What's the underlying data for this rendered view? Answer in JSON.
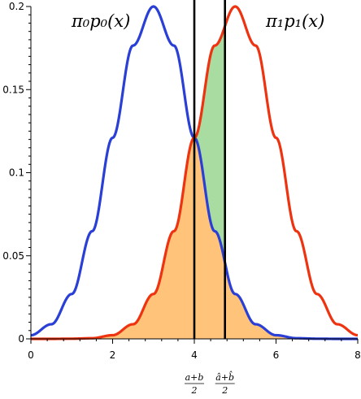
{
  "chart_data": {
    "type": "line",
    "title": "",
    "xlabel": "",
    "ylabel": "",
    "xlim": [
      0,
      8
    ],
    "ylim": [
      0,
      0.2
    ],
    "x_ticks": [
      0,
      2,
      4,
      6,
      8
    ],
    "x_tick_labels": [
      "0",
      "2",
      "4",
      "6",
      "8"
    ],
    "y_ticks": [
      0,
      0.05,
      0.1,
      0.15,
      0.2
    ],
    "y_tick_labels": [
      "0",
      "0.05",
      "0.1",
      "0.15",
      "0.2"
    ],
    "grid": false,
    "series": [
      {
        "name": "π₀p₀(x)",
        "color": "#2a3fd6",
        "x": [
          0,
          0.5,
          1,
          1.5,
          2,
          2.5,
          3,
          3.5,
          4,
          4.5,
          5,
          5.5,
          6,
          6.5,
          7,
          7.5,
          8
        ],
        "y": [
          0.0022,
          0.0088,
          0.027,
          0.0648,
          0.121,
          0.1765,
          0.2,
          0.1765,
          0.121,
          0.0648,
          0.027,
          0.0088,
          0.0022,
          0.0004,
          0.0001,
          0.0,
          0.0
        ]
      },
      {
        "name": "π₁p₁(x)",
        "color": "#ee3311",
        "x": [
          0,
          0.5,
          1,
          1.5,
          2,
          2.5,
          3,
          3.5,
          4,
          4.5,
          5,
          5.5,
          6,
          6.5,
          7,
          7.5,
          8
        ],
        "y": [
          0.0,
          0.0,
          0.0001,
          0.0004,
          0.0022,
          0.0088,
          0.027,
          0.0648,
          0.121,
          0.1765,
          0.2,
          0.1765,
          0.121,
          0.0648,
          0.027,
          0.0088,
          0.0022
        ]
      }
    ],
    "vertical_lines": [
      {
        "x": 4.0,
        "label_num": "a+b",
        "label_den": "2"
      },
      {
        "x": 4.75,
        "label_num": "â+b̂",
        "label_den": "2"
      }
    ],
    "shaded_regions": [
      {
        "description": "error under crossing",
        "color": "#ffc47a"
      },
      {
        "description": "extra error between thresholds",
        "color": "#a9dca0"
      }
    ],
    "annotations": [
      {
        "text": "π₀p₀(x)"
      },
      {
        "text": "π₁p₁(x)"
      }
    ]
  }
}
